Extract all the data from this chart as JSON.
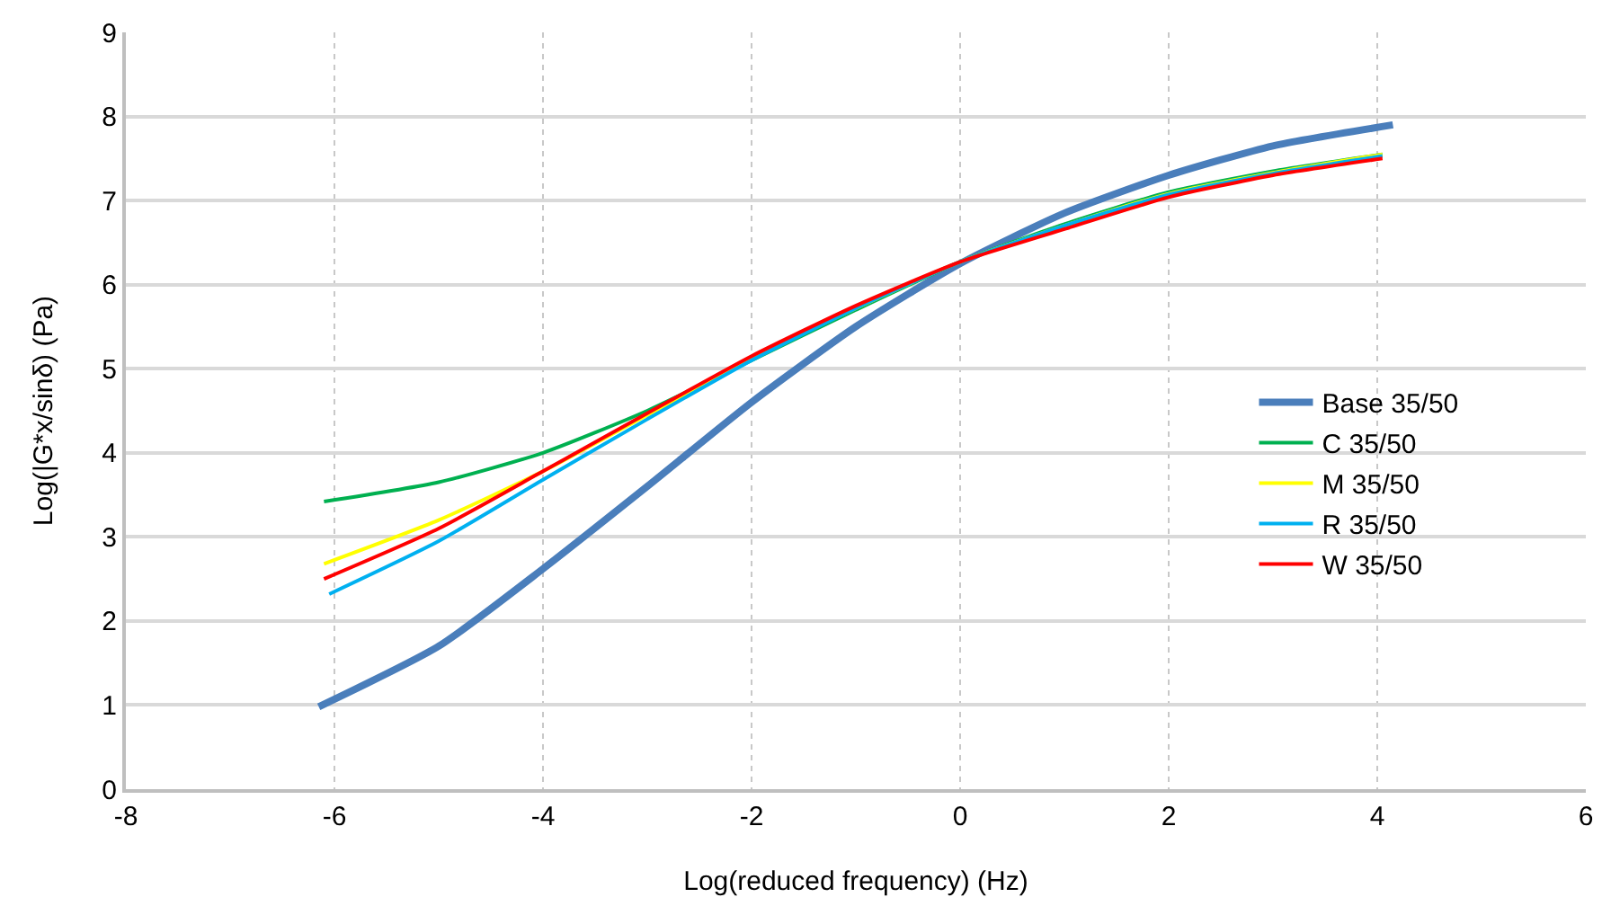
{
  "chart_data": {
    "type": "line",
    "xlabel": "Log(reduced frequency) (Hz)",
    "ylabel": "Log(|G*x/sinδ) (Pa)",
    "xlim": [
      -8,
      6
    ],
    "xticks": [
      -8,
      -6,
      -4,
      -2,
      0,
      2,
      4,
      6
    ],
    "ylim": [
      0,
      9
    ],
    "yticks": [
      0,
      1,
      2,
      3,
      4,
      5,
      6,
      7,
      8,
      9
    ],
    "grid": true,
    "legend": "right",
    "marker": "none",
    "line_style": "solid",
    "series": [
      {
        "name": "Base 35/50",
        "color": "#4a7ebb",
        "x": [
          -6.15,
          -5,
          -4,
          -3,
          -2,
          -1,
          0,
          1,
          2,
          3,
          4.15
        ],
        "values": [
          0.98,
          1.7,
          2.62,
          3.6,
          4.6,
          5.5,
          6.25,
          6.85,
          7.3,
          7.65,
          7.9
        ]
      },
      {
        "name": "C 35/50",
        "color": "#00b050",
        "x": [
          -6.1,
          -5,
          -4,
          -3,
          -2,
          -1,
          0,
          1,
          2,
          3,
          4.05
        ],
        "values": [
          3.42,
          3.65,
          4.0,
          4.5,
          5.1,
          5.7,
          6.27,
          6.72,
          7.1,
          7.35,
          7.55
        ]
      },
      {
        "name": "M 35/50",
        "color": "#ffff00",
        "x": [
          -6.1,
          -5,
          -4,
          -3,
          -2,
          -1,
          0,
          1,
          2,
          3,
          4.05
        ],
        "values": [
          2.68,
          3.2,
          3.78,
          4.45,
          5.12,
          5.72,
          6.27,
          6.7,
          7.08,
          7.33,
          7.55
        ]
      },
      {
        "name": "R 35/50",
        "color": "#00b0f0",
        "x": [
          -6.05,
          -5,
          -4,
          -3,
          -2,
          -1,
          0,
          1,
          2,
          3,
          4.05
        ],
        "values": [
          2.32,
          2.95,
          3.68,
          4.4,
          5.1,
          5.72,
          6.27,
          6.7,
          7.07,
          7.32,
          7.53
        ]
      },
      {
        "name": "W 35/50",
        "color": "#ff0000",
        "x": [
          -6.1,
          -5,
          -4,
          -3,
          -2,
          -1,
          0,
          1,
          2,
          3,
          4.05
        ],
        "values": [
          2.5,
          3.1,
          3.78,
          4.47,
          5.15,
          5.75,
          6.27,
          6.66,
          7.04,
          7.3,
          7.5
        ]
      }
    ]
  }
}
